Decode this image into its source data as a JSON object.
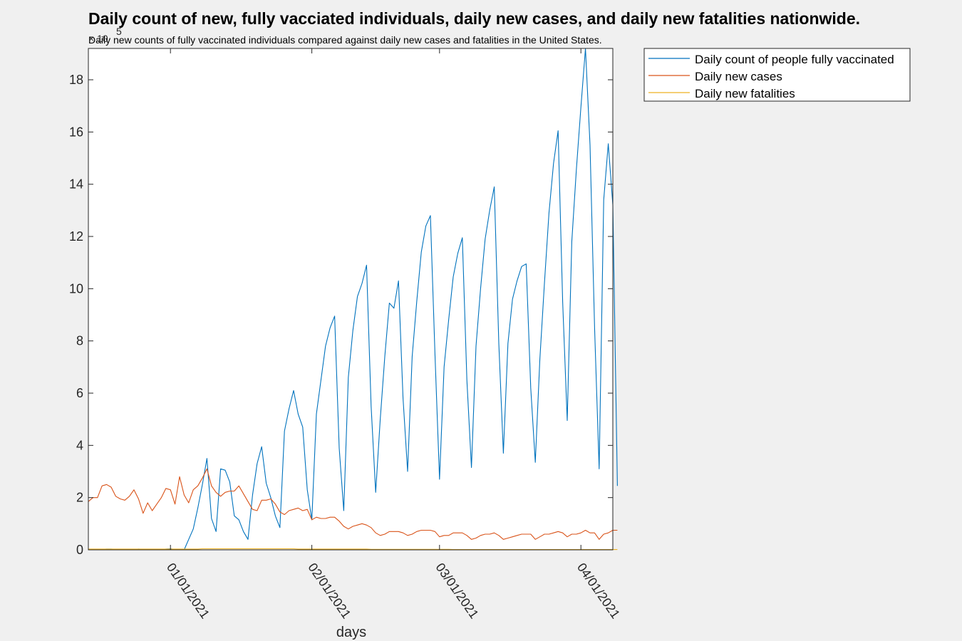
{
  "chart_data": {
    "type": "line",
    "title": "Daily count of new, fully vacciated individuals, daily new cases, and daily new fatalities nationwide.",
    "subtitle": "Daily new counts of fully vaccinated individuals compared against daily new cases and fatalities in the United States.",
    "xlabel": "days",
    "ylabel": "",
    "y_exponent_base": "× 10",
    "y_exponent_power": "5",
    "y_multiplier": 100000,
    "x_start": "2020-12-14",
    "xlim": [
      "2020-12-14",
      "2021-04-08"
    ],
    "ylim": [
      0,
      19.2
    ],
    "yticks": [
      0,
      2,
      4,
      6,
      8,
      10,
      12,
      14,
      16,
      18
    ],
    "xticks": [
      {
        "date": "2021-01-01",
        "label": "01/01/2021"
      },
      {
        "date": "2021-02-01",
        "label": "02/01/2021"
      },
      {
        "date": "2021-03-01",
        "label": "03/01/2021"
      },
      {
        "date": "2021-04-01",
        "label": "04/01/2021"
      }
    ],
    "grid": false,
    "legend_position": "outside-top-right",
    "series": [
      {
        "name": "Daily count of people fully vaccinated",
        "color": "#0072BD",
        "values": [
          0,
          0.02,
          0.02,
          0.02,
          0.03,
          0.03,
          0.02,
          0.02,
          0.02,
          0,
          0.01,
          0.03,
          0.02,
          0.01,
          0,
          0,
          0.01,
          0.03,
          0.04,
          0.01,
          0,
          0,
          0.4,
          0.8,
          1.6,
          2.5,
          3.5,
          1.2,
          0.7,
          3.1,
          3.05,
          2.6,
          1.3,
          1.15,
          0.7,
          0.4,
          2.1,
          3.3,
          3.95,
          2.55,
          2.0,
          1.3,
          0.85,
          4.55,
          5.4,
          6.1,
          5.2,
          4.7,
          2.3,
          1.15,
          5.2,
          6.5,
          7.8,
          8.5,
          8.95,
          3.9,
          1.5,
          6.6,
          8.4,
          9.7,
          10.2,
          10.9,
          5.5,
          2.2,
          5.0,
          7.4,
          9.45,
          9.25,
          10.3,
          5.8,
          3.0,
          7.4,
          9.5,
          11.4,
          12.4,
          12.8,
          7.5,
          2.7,
          7.0,
          8.8,
          10.45,
          11.35,
          11.95,
          6.5,
          3.15,
          7.8,
          10.0,
          11.9,
          13.0,
          13.9,
          7.9,
          3.7,
          7.9,
          9.6,
          10.3,
          10.85,
          10.95,
          6.2,
          3.35,
          7.3,
          10.2,
          12.9,
          14.8,
          16.05,
          9.5,
          4.95,
          11.8,
          14.55,
          16.95,
          19.2,
          15.5,
          8.5,
          3.1,
          13.4,
          15.55,
          13.2,
          2.45
        ]
      },
      {
        "name": "Daily new cases",
        "color": "#D95319",
        "values": [
          1.85,
          2.0,
          2.0,
          2.45,
          2.5,
          2.4,
          2.05,
          1.95,
          1.9,
          2.05,
          2.3,
          1.95,
          1.4,
          1.8,
          1.5,
          1.75,
          2.0,
          2.35,
          2.3,
          1.75,
          2.8,
          2.1,
          1.8,
          2.3,
          2.45,
          2.75,
          3.1,
          2.45,
          2.2,
          2.05,
          2.2,
          2.25,
          2.25,
          2.45,
          2.15,
          1.85,
          1.55,
          1.5,
          1.9,
          1.9,
          1.95,
          1.75,
          1.45,
          1.35,
          1.5,
          1.55,
          1.6,
          1.5,
          1.55,
          1.15,
          1.25,
          1.2,
          1.2,
          1.25,
          1.25,
          1.1,
          0.9,
          0.8,
          0.9,
          0.95,
          1.0,
          0.95,
          0.85,
          0.65,
          0.55,
          0.6,
          0.7,
          0.7,
          0.7,
          0.65,
          0.55,
          0.6,
          0.7,
          0.75,
          0.75,
          0.75,
          0.7,
          0.5,
          0.55,
          0.55,
          0.65,
          0.65,
          0.65,
          0.55,
          0.4,
          0.45,
          0.55,
          0.6,
          0.6,
          0.65,
          0.55,
          0.4,
          0.45,
          0.5,
          0.55,
          0.6,
          0.6,
          0.6,
          0.4,
          0.5,
          0.6,
          0.6,
          0.65,
          0.7,
          0.65,
          0.5,
          0.6,
          0.6,
          0.65,
          0.75,
          0.65,
          0.65,
          0.4,
          0.6,
          0.65,
          0.75,
          0.75
        ]
      },
      {
        "name": "Daily new fatalities",
        "color": "#EDB120",
        "values": [
          0.03,
          0.03,
          0.03,
          0.03,
          0.03,
          0.03,
          0.03,
          0.03,
          0.03,
          0.03,
          0.03,
          0.03,
          0.03,
          0.03,
          0.03,
          0.03,
          0.03,
          0.03,
          0.03,
          0.03,
          0.03,
          0.03,
          0.03,
          0.03,
          0.03,
          0.04,
          0.04,
          0.04,
          0.04,
          0.04,
          0.04,
          0.04,
          0.04,
          0.04,
          0.04,
          0.04,
          0.04,
          0.04,
          0.04,
          0.04,
          0.04,
          0.04,
          0.04,
          0.04,
          0.04,
          0.04,
          0.03,
          0.03,
          0.03,
          0.03,
          0.03,
          0.03,
          0.03,
          0.03,
          0.03,
          0.03,
          0.03,
          0.03,
          0.03,
          0.03,
          0.03,
          0.03,
          0.02,
          0.02,
          0.02,
          0.02,
          0.02,
          0.02,
          0.02,
          0.02,
          0.02,
          0.02,
          0.02,
          0.02,
          0.02,
          0.02,
          0.02,
          0.02,
          0.02,
          0.02,
          0.01,
          0.01,
          0.01,
          0.01,
          0.01,
          0.01,
          0.01,
          0.01,
          0.01,
          0.01,
          0.01,
          0.01,
          0.01,
          0.01,
          0.01,
          0.01,
          0.01,
          0.01,
          0.01,
          0.01,
          0.01,
          0.01,
          0.01,
          0.01,
          0.01,
          0.01,
          0.01,
          0.01,
          0.01,
          0.01,
          0.01,
          0.01,
          0.01,
          0.01,
          0.01,
          0.01,
          0.01
        ]
      }
    ]
  }
}
